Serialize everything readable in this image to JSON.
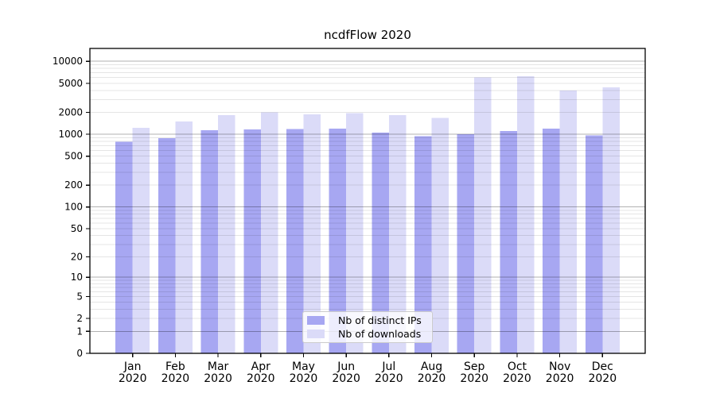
{
  "chart_data": {
    "type": "bar",
    "title": "ncdfFlow 2020",
    "x": {
      "months": [
        "Jan",
        "Feb",
        "Mar",
        "Apr",
        "May",
        "Jun",
        "Jul",
        "Aug",
        "Sep",
        "Oct",
        "Nov",
        "Dec"
      ],
      "year": "2020"
    },
    "series": [
      {
        "name": "Nb of distinct IPs",
        "color": "#a7a7f2",
        "values": [
          790,
          880,
          1130,
          1170,
          1180,
          1190,
          1060,
          940,
          1000,
          1110,
          1190,
          960
        ]
      },
      {
        "name": "Nb of downloads",
        "color": "#dbdbf8",
        "values": [
          1230,
          1490,
          1820,
          1990,
          1880,
          1940,
          1830,
          1670,
          5990,
          6280,
          3990,
          4400
        ]
      }
    ],
    "y_axis": {
      "ticks": [
        0,
        1,
        2,
        5,
        10,
        20,
        50,
        100,
        200,
        500,
        1000,
        2000,
        5000,
        10000
      ],
      "scale": "log10(value+1)",
      "range": [
        0,
        15000
      ]
    },
    "legend": {
      "position": "inside-bottom-center"
    },
    "grid": {
      "horizontal_major": true,
      "horizontal_minor": true
    },
    "colors": {
      "grid_major": "rgba(0,0,0,0.30)",
      "grid_minor": "rgba(0,0,0,0.10)",
      "axis": "#000000",
      "text": "#000000",
      "legend_border": "#cccccc",
      "legend_bg": "rgba(255,255,255,0.8)",
      "background": "#ffffff"
    }
  }
}
